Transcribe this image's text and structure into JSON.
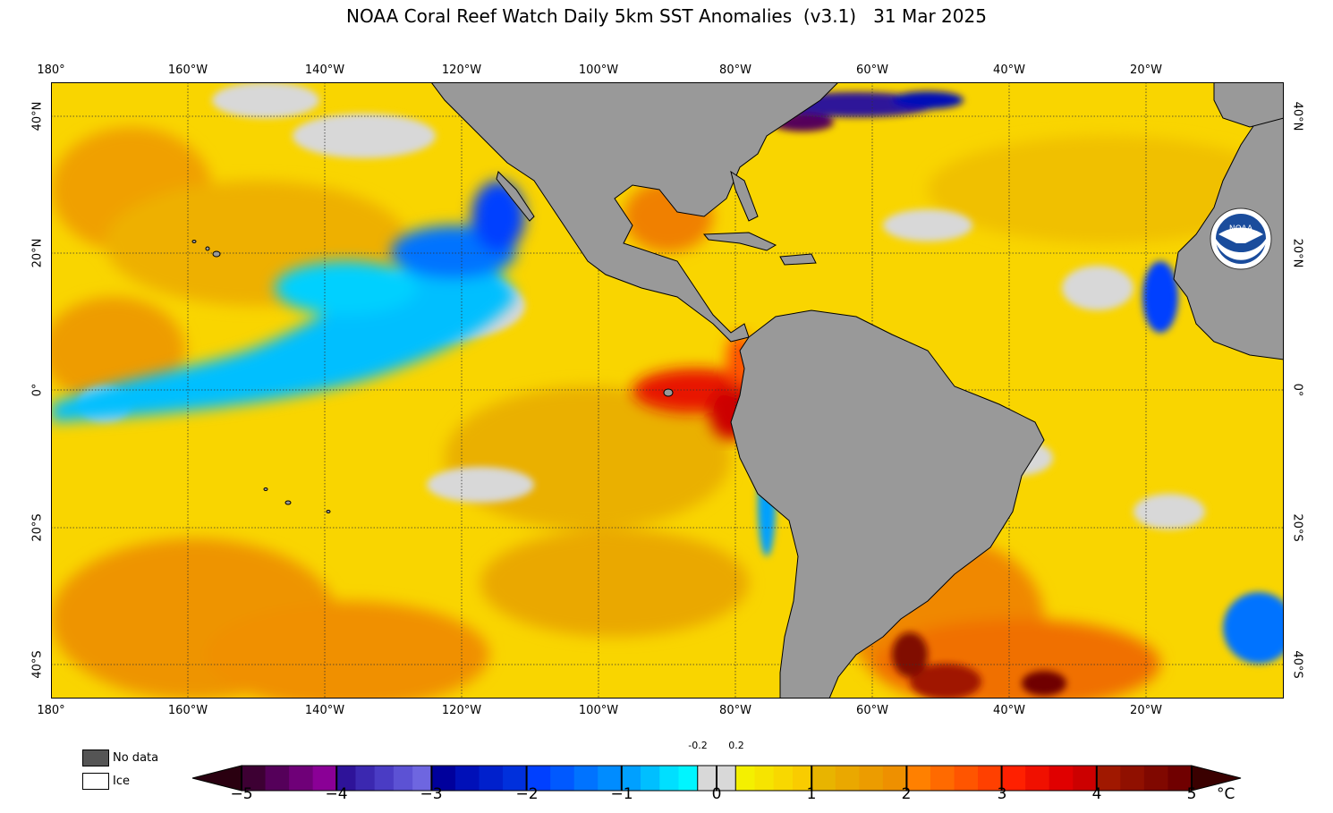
{
  "title": "NOAA Coral Reef Watch Daily 5km SST Anomalies  (v3.1)   31 Mar 2025",
  "map": {
    "longitude_labels": [
      "180°",
      "160°W",
      "140°W",
      "120°W",
      "100°W",
      "80°W",
      "60°W",
      "40°W",
      "20°W"
    ],
    "latitude_labels": [
      "40°N",
      "20°N",
      "0°",
      "20°S",
      "40°S"
    ],
    "extent": {
      "lon_min": -180,
      "lon_max": 0,
      "lat_min": -45,
      "lat_max": 45
    },
    "land_color": "#999999",
    "no_data_color": "#555555",
    "logo_text": "NOAA"
  },
  "legend": {
    "no_data_label": "No data",
    "ice_label": "Ice"
  },
  "colorbar": {
    "ticks": [
      "−5",
      "−4",
      "−3",
      "−2",
      "−1",
      "0",
      "1",
      "2",
      "3",
      "4",
      "5"
    ],
    "small_ticks": [
      "-0.2",
      "0.2"
    ],
    "unit": "°C",
    "colors": {
      "below_min": "#2a0010",
      "m5_m4": [
        "#3d0033",
        "#55005a",
        "#6f0078",
        "#8a0096"
      ],
      "m4_m3": [
        "#2e1399",
        "#3b28b0",
        "#4a3cc4",
        "#5c52d4",
        "#6e66e0"
      ],
      "m3_m2": [
        "#00009c",
        "#0010b8",
        "#0020cc",
        "#0030dc"
      ],
      "m2_m1": [
        "#0040ff",
        "#0059ff",
        "#0073ff",
        "#008cff"
      ],
      "m1_0": [
        "#00a0ff",
        "#00bfff",
        "#00dfff",
        "#00f5ff"
      ],
      "near_zero": "#d8d8d8",
      "p0_1": [
        "#f4f000",
        "#f6e400",
        "#f8d800",
        "#f9cc00"
      ],
      "p1_2": [
        "#e8b400",
        "#eaa800",
        "#ec9c00",
        "#ee9000"
      ],
      "p2_3": [
        "#ff8000",
        "#ff6a00",
        "#ff5500",
        "#ff4000"
      ],
      "p3_4": [
        "#ff2000",
        "#f01000",
        "#e00000",
        "#cc0000"
      ],
      "p4_5": [
        "#a01800",
        "#901000",
        "#800800",
        "#700000"
      ],
      "above_max": "#3a0000"
    }
  }
}
